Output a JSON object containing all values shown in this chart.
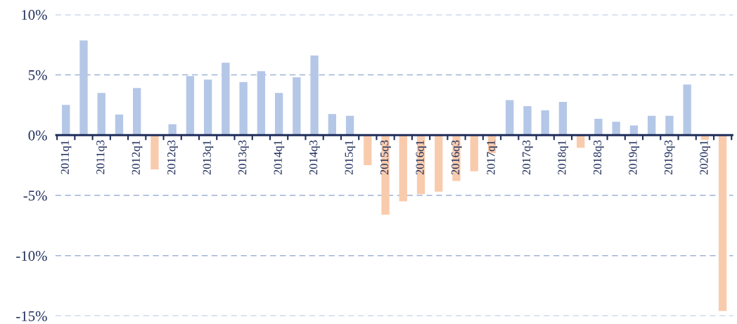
{
  "chart_data": {
    "type": "bar",
    "categories": [
      "2011q1",
      null,
      "2011q3",
      null,
      "2012q1",
      null,
      "2012q3",
      null,
      "2013q1",
      null,
      "2013q3",
      null,
      "2014q1",
      null,
      "2014q3",
      null,
      "2015q1",
      null,
      "2015q3",
      null,
      "2016q1",
      null,
      "2016q3",
      null,
      "2017q1",
      null,
      "2017q3",
      null,
      "2018q1",
      null,
      "2018q3",
      null,
      "2019q1",
      null,
      "2019q3",
      null,
      "2020q1",
      null
    ],
    "values": [
      2.5,
      7.85,
      3.5,
      1.7,
      3.9,
      -2.85,
      0.9,
      4.9,
      4.6,
      6.0,
      4.4,
      5.3,
      3.5,
      4.8,
      6.6,
      1.75,
      1.6,
      -2.5,
      -6.6,
      -5.5,
      -4.9,
      -4.7,
      -3.8,
      -3.0,
      -1.5,
      2.9,
      2.4,
      2.05,
      2.75,
      -1.05,
      1.35,
      1.1,
      0.8,
      1.6,
      1.6,
      4.2,
      -0.4,
      -14.6
    ],
    "colors": [
      "#b4c7e7",
      "#b4c7e7",
      "#b4c7e7",
      "#b4c7e7",
      "#b4c7e7",
      "#f8cbad",
      "#b4c7e7",
      "#b4c7e7",
      "#b4c7e7",
      "#b4c7e7",
      "#b4c7e7",
      "#b4c7e7",
      "#b4c7e7",
      "#b4c7e7",
      "#b4c7e7",
      "#b4c7e7",
      "#b4c7e7",
      "#f8cbad",
      "#f8cbad",
      "#f8cbad",
      "#f8cbad",
      "#f8cbad",
      "#f8cbad",
      "#f8cbad",
      "#f8cbad",
      "#b4c7e7",
      "#b4c7e7",
      "#b4c7e7",
      "#b4c7e7",
      "#f8cbad",
      "#b4c7e7",
      "#b4c7e7",
      "#b4c7e7",
      "#b4c7e7",
      "#b4c7e7",
      "#b4c7e7",
      "#f8cbad",
      "#f8cbad"
    ],
    "ylim": [
      -15,
      10
    ],
    "yticks": [
      {
        "value": -15,
        "label": "-15%"
      },
      {
        "value": -10,
        "label": "-10%"
      },
      {
        "value": -5,
        "label": "-5%"
      },
      {
        "value": 0,
        "label": "0%"
      },
      {
        "value": 5,
        "label": "5%"
      },
      {
        "value": 10,
        "label": "10%"
      }
    ],
    "grid": "y"
  }
}
